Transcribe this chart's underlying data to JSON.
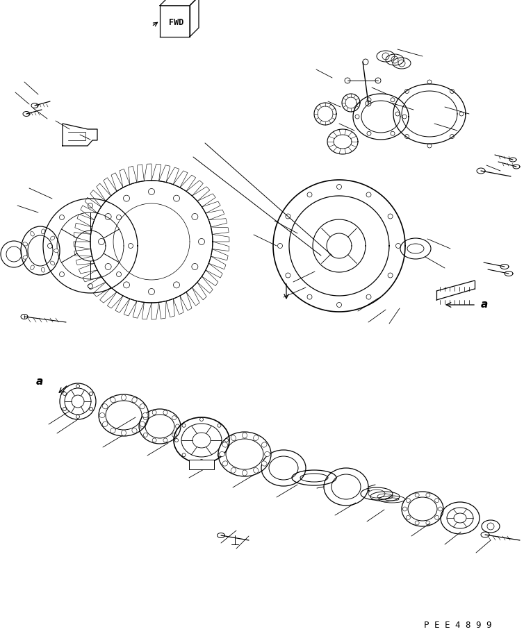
{
  "background_color": "#ffffff",
  "line_color": "#000000",
  "figure_width": 7.54,
  "figure_height": 9.26,
  "dpi": 100,
  "part_code": "P E E 4 8 9 9",
  "fwd_label": "FWD",
  "label_a": "a"
}
